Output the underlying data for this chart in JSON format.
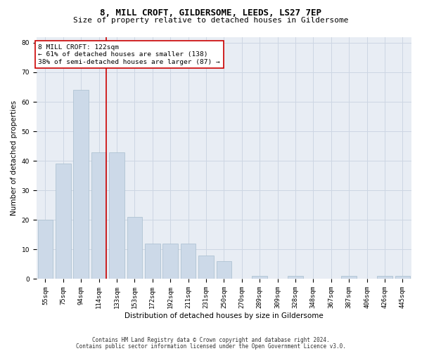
{
  "title1": "8, MILL CROFT, GILDERSOME, LEEDS, LS27 7EP",
  "title2": "Size of property relative to detached houses in Gildersome",
  "xlabel": "Distribution of detached houses by size in Gildersome",
  "ylabel": "Number of detached properties",
  "categories": [
    "55sqm",
    "75sqm",
    "94sqm",
    "114sqm",
    "133sqm",
    "153sqm",
    "172sqm",
    "192sqm",
    "211sqm",
    "231sqm",
    "250sqm",
    "270sqm",
    "289sqm",
    "309sqm",
    "328sqm",
    "348sqm",
    "367sqm",
    "387sqm",
    "406sqm",
    "426sqm",
    "445sqm"
  ],
  "values": [
    20,
    39,
    64,
    43,
    43,
    21,
    12,
    12,
    12,
    8,
    6,
    0,
    1,
    0,
    1,
    0,
    0,
    1,
    0,
    1,
    1
  ],
  "bar_color": "#ccd9e8",
  "bar_edge_color": "#a8bece",
  "vline_x_index": 3,
  "annotation_text": "8 MILL CROFT: 122sqm\n← 61% of detached houses are smaller (138)\n38% of semi-detached houses are larger (87) →",
  "annotation_box_color": "#ffffff",
  "annotation_box_edge": "#cc0000",
  "vline_color": "#cc0000",
  "grid_color": "#cdd6e3",
  "background_color": "#e8edf4",
  "footer1": "Contains HM Land Registry data © Crown copyright and database right 2024.",
  "footer2": "Contains public sector information licensed under the Open Government Licence v3.0.",
  "ylim": [
    0,
    82
  ],
  "title1_fontsize": 9,
  "title2_fontsize": 8,
  "xlabel_fontsize": 7.5,
  "ylabel_fontsize": 7.5,
  "tick_fontsize": 6.5,
  "annotation_fontsize": 6.8,
  "footer_fontsize": 5.5
}
